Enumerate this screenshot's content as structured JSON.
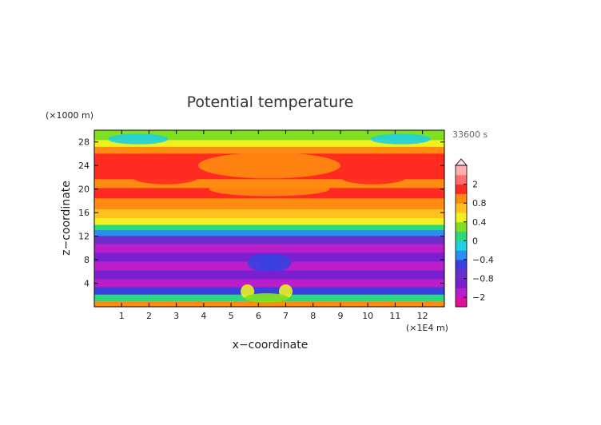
{
  "chart_data": {
    "type": "heatmap",
    "title": "Potential temperature",
    "xlabel": "x−coordinate",
    "ylabel": "z−coordinate",
    "x_unit": "(×1E4 m)",
    "y_unit": "(×1000 m)",
    "time_label": "33600 s",
    "xlim": [
      0,
      12.8
    ],
    "ylim": [
      0,
      30
    ],
    "x_ticks": [
      "1",
      "2",
      "3",
      "4",
      "5",
      "6",
      "7",
      "8",
      "9",
      "10",
      "11",
      "12"
    ],
    "y_ticks": [
      "4",
      "8",
      "12",
      "16",
      "20",
      "24",
      "28"
    ],
    "colorbar": {
      "tick_labels": [
        "2",
        "0.8",
        "0.4",
        "0",
        "−0.4",
        "−0.8",
        "−2"
      ],
      "tick_values": [
        2,
        0.8,
        0.4,
        0,
        -0.4,
        -0.8,
        -2
      ],
      "levels": [
        -3,
        -2,
        -1.2,
        -0.8,
        -0.6,
        -0.4,
        -0.2,
        0,
        0.2,
        0.4,
        0.6,
        0.8,
        1.2,
        2,
        3
      ],
      "colors": [
        "#e0109a",
        "#b91ec8",
        "#7a1fd0",
        "#6a2fc8",
        "#3b3fe0",
        "#2a8ef0",
        "#1fd0e0",
        "#2ad880",
        "#7fe020",
        "#f0f020",
        "#ffc020",
        "#ff8c10",
        "#ff2a20",
        "#ff6e70",
        "#ffb0b0"
      ]
    },
    "bands": [
      {
        "z": 0.5,
        "value": 0.9
      },
      {
        "z": 1.5,
        "value": 0.1
      },
      {
        "z": 2.8,
        "value": -0.5
      },
      {
        "z": 4.0,
        "value": -1.5
      },
      {
        "z": 5.5,
        "value": -0.9
      },
      {
        "z": 7.0,
        "value": -1.6
      },
      {
        "z": 8.5,
        "value": -1.0
      },
      {
        "z": 10.0,
        "value": -1.4
      },
      {
        "z": 11.5,
        "value": -0.7
      },
      {
        "z": 12.7,
        "value": -0.3
      },
      {
        "z": 13.5,
        "value": 0.1
      },
      {
        "z": 14.5,
        "value": 0.5
      },
      {
        "z": 15.8,
        "value": 0.7
      },
      {
        "z": 17.5,
        "value": 0.9
      },
      {
        "z": 19.5,
        "value": 1.3
      },
      {
        "z": 21.0,
        "value": 1.1
      },
      {
        "z": 22.5,
        "value": 1.5
      },
      {
        "z": 24.0,
        "value": 1.5
      },
      {
        "z": 25.5,
        "value": 1.2
      },
      {
        "z": 26.7,
        "value": 0.9
      },
      {
        "z": 27.8,
        "value": 0.5
      },
      {
        "z": 29.0,
        "value": 0.2
      }
    ],
    "features": [
      {
        "x": 6.4,
        "z": 24.0,
        "rx": 2.6,
        "rz": 2.2,
        "value": 0.9
      },
      {
        "x": 6.4,
        "z": 20.0,
        "rx": 2.2,
        "rz": 1.2,
        "value": 0.9
      },
      {
        "x": 2.6,
        "z": 22.0,
        "rx": 1.2,
        "rz": 1.2,
        "value": 1.8
      },
      {
        "x": 10.2,
        "z": 22.0,
        "rx": 1.2,
        "rz": 1.2,
        "value": 1.8
      },
      {
        "x": 1.6,
        "z": 28.5,
        "rx": 1.1,
        "rz": 0.9,
        "value": -0.1
      },
      {
        "x": 11.2,
        "z": 28.5,
        "rx": 1.1,
        "rz": 0.9,
        "value": -0.1
      },
      {
        "x": 6.2,
        "z": 7.5,
        "rx": 0.6,
        "rz": 1.5,
        "value": -0.6
      },
      {
        "x": 6.6,
        "z": 7.5,
        "rx": 0.6,
        "rz": 1.5,
        "value": -0.6
      },
      {
        "x": 5.6,
        "z": 2.6,
        "rx": 0.25,
        "rz": 1.2,
        "value": 0.5
      },
      {
        "x": 7.0,
        "z": 2.6,
        "rx": 0.25,
        "rz": 1.2,
        "value": 0.5
      },
      {
        "x": 6.3,
        "z": 1.5,
        "rx": 0.8,
        "rz": 0.8,
        "value": 0.3
      }
    ]
  }
}
